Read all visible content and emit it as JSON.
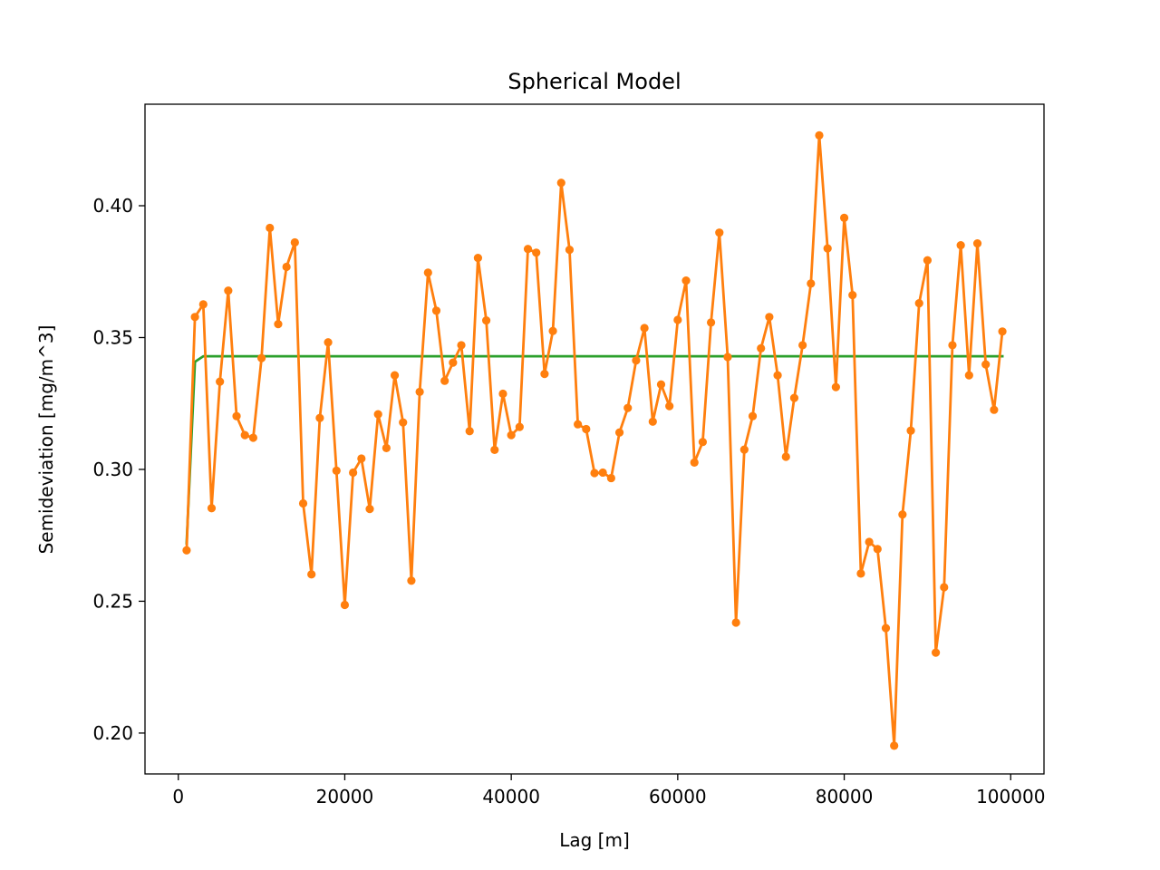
{
  "chart_data": {
    "type": "line",
    "title": "Spherical Model",
    "xlabel": "Lag [m]",
    "ylabel": "Semideviation [mg/m^3]",
    "xlim": [
      -4000,
      104000
    ],
    "ylim": [
      0.1845,
      0.4385
    ],
    "xticks": [
      0,
      20000,
      40000,
      60000,
      80000,
      100000
    ],
    "xtick_labels": [
      "0",
      "20000",
      "40000",
      "60000",
      "80000",
      "100000"
    ],
    "yticks": [
      0.2,
      0.25,
      0.3,
      0.35,
      0.4
    ],
    "ytick_labels": [
      "0.20",
      "0.25",
      "0.30",
      "0.35",
      "0.40"
    ],
    "grid": false,
    "colors": {
      "experimental": "#ff7f0e",
      "model": "#2ca02c"
    },
    "series": [
      {
        "kind": "experimental",
        "marker": "dot",
        "x": [
          1000,
          2000,
          3000,
          4000,
          5000,
          6000,
          7000,
          8000,
          9000,
          10000,
          11000,
          12000,
          13000,
          14000,
          15000,
          16000,
          17000,
          18000,
          19000,
          20000,
          21000,
          22000,
          23000,
          24000,
          25000,
          26000,
          27000,
          28000,
          29000,
          30000,
          31000,
          32000,
          33000,
          34000,
          35000,
          36000,
          37000,
          38000,
          39000,
          40000,
          41000,
          42000,
          43000,
          44000,
          45000,
          46000,
          47000,
          48000,
          49000,
          50000,
          51000,
          52000,
          53000,
          54000,
          55000,
          56000,
          57000,
          58000,
          59000,
          60000,
          61000,
          62000,
          63000,
          64000,
          65000,
          66000,
          67000,
          68000,
          69000,
          70000,
          71000,
          72000,
          73000,
          74000,
          75000,
          76000,
          77000,
          78000,
          79000,
          80000,
          81000,
          82000,
          83000,
          84000,
          85000,
          86000,
          87000,
          88000,
          89000,
          90000,
          91000,
          92000,
          93000,
          94000,
          95000,
          96000,
          97000,
          98000,
          99000
        ],
        "y": [
          0.2693,
          0.3578,
          0.3626,
          0.2853,
          0.3333,
          0.3678,
          0.3202,
          0.313,
          0.312,
          0.3422,
          0.3916,
          0.3551,
          0.3768,
          0.3861,
          0.2871,
          0.2602,
          0.3195,
          0.3482,
          0.2995,
          0.2486,
          0.2988,
          0.3041,
          0.285,
          0.3209,
          0.3081,
          0.3357,
          0.3178,
          0.2578,
          0.3294,
          0.3746,
          0.3602,
          0.3336,
          0.3405,
          0.3471,
          0.3145,
          0.3802,
          0.3565,
          0.3074,
          0.3287,
          0.313,
          0.3161,
          0.3836,
          0.3822,
          0.3362,
          0.3525,
          0.4087,
          0.3833,
          0.3171,
          0.3153,
          0.2986,
          0.2988,
          0.2967,
          0.314,
          0.3233,
          0.3413,
          0.3536,
          0.3181,
          0.3322,
          0.324,
          0.3567,
          0.3716,
          0.3026,
          0.3104,
          0.3557,
          0.3898,
          0.3426,
          0.2419,
          0.3075,
          0.3202,
          0.3459,
          0.3578,
          0.3357,
          0.3048,
          0.3271,
          0.3471,
          0.3705,
          0.4267,
          0.3838,
          0.3312,
          0.3954,
          0.3661,
          0.2605,
          0.2725,
          0.2698,
          0.2398,
          0.1952,
          0.2829,
          0.3147,
          0.363,
          0.3793,
          0.2305,
          0.2553,
          0.3471,
          0.385,
          0.3357,
          0.3857,
          0.3398,
          0.3226,
          0.3523
        ]
      },
      {
        "kind": "model",
        "marker": "none",
        "x": [
          1000,
          2000,
          3000,
          99000
        ],
        "y": [
          0.272,
          0.3408,
          0.3429,
          0.3429
        ]
      }
    ]
  }
}
